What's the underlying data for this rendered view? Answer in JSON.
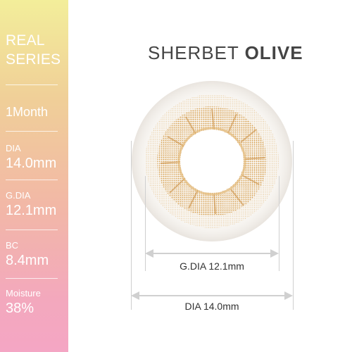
{
  "product": {
    "title_light": "SHERBET",
    "title_bold": "OLIVE"
  },
  "sidebar": {
    "series_line1": "REAL",
    "series_line2": "SERIES",
    "duration": "1Month",
    "specs": [
      {
        "label": "DIA",
        "value": "14.0mm"
      },
      {
        "label": "G.DIA",
        "value": "12.1mm"
      },
      {
        "label": "BC",
        "value": "8.4mm"
      },
      {
        "label": "Moisture",
        "value": "38%"
      }
    ]
  },
  "dimensions": {
    "gdia_label": "G.DIA 12.1mm",
    "dia_label": "DIA 14.0mm"
  },
  "colors": {
    "lens_tint": "#e6b86a",
    "pattern_dark": "#c98a3a",
    "arrow": "#d0d0d0"
  }
}
